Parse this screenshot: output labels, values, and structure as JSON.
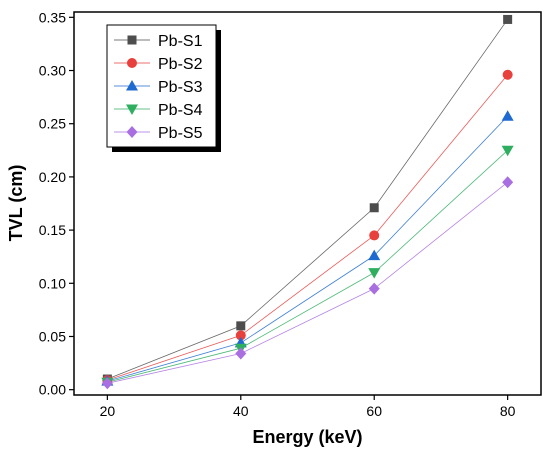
{
  "chart_data": {
    "type": "line",
    "xlabel": "Energy (keV)",
    "ylabel": "TVL (cm)",
    "x": [
      20,
      40,
      60,
      80
    ],
    "xlim": [
      15,
      85
    ],
    "ylim": [
      -0.005,
      0.355
    ],
    "xticks": [
      20,
      40,
      60,
      80
    ],
    "xtick_labels": [
      "20",
      "40",
      "60",
      "80"
    ],
    "yticks": [
      0,
      0.05,
      0.1,
      0.15,
      0.2,
      0.25,
      0.3,
      0.35
    ],
    "ytick_labels": [
      "0.00",
      "0.05",
      "0.10",
      "0.15",
      "0.20",
      "0.25",
      "0.30",
      "0.35"
    ],
    "grid": false,
    "legend_position": "top-left",
    "series": [
      {
        "name": "Pb-S1",
        "values": [
          0.01,
          0.06,
          0.171,
          0.348
        ],
        "color": "#4d4d4d",
        "marker": "square"
      },
      {
        "name": "Pb-S2",
        "values": [
          0.009,
          0.051,
          0.145,
          0.296
        ],
        "color": "#e8403d",
        "marker": "circle"
      },
      {
        "name": "Pb-S3",
        "values": [
          0.008,
          0.044,
          0.126,
          0.257
        ],
        "color": "#1f6ad0",
        "marker": "triangle-up"
      },
      {
        "name": "Pb-S4",
        "values": [
          0.007,
          0.039,
          0.11,
          0.225
        ],
        "color": "#2fae60",
        "marker": "triangle-down"
      },
      {
        "name": "Pb-S5",
        "values": [
          0.006,
          0.034,
          0.095,
          0.195
        ],
        "color": "#a96fe0",
        "marker": "diamond"
      }
    ]
  }
}
